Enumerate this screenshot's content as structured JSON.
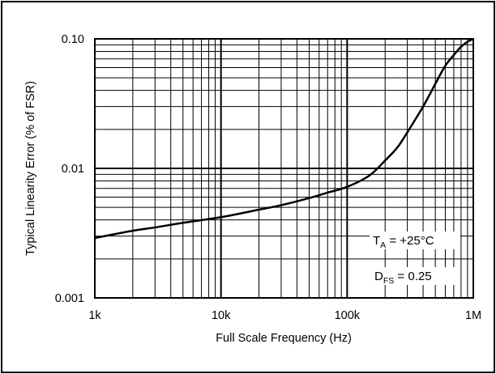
{
  "chart_data": {
    "type": "line",
    "x_scale": "log",
    "y_scale": "log",
    "xlim": [
      1000,
      1000000
    ],
    "ylim": [
      0.001,
      0.1
    ],
    "xlabel": "Full Scale Frequency (Hz)",
    "ylabel": "Typical Linearity Error (% of FSR)",
    "x_ticks": [
      {
        "value": 1000,
        "label": "1k"
      },
      {
        "value": 10000,
        "label": "10k"
      },
      {
        "value": 100000,
        "label": "100k"
      },
      {
        "value": 1000000,
        "label": "1M"
      }
    ],
    "y_ticks": [
      {
        "value": 0.001,
        "label": "0.001"
      },
      {
        "value": 0.01,
        "label": "0.01"
      },
      {
        "value": 0.1,
        "label": "0.10"
      }
    ],
    "grid": true,
    "series": [
      {
        "x": [
          1000,
          2000,
          3000,
          5000,
          10000,
          20000,
          30000,
          50000,
          70000,
          100000,
          150000,
          200000,
          250000,
          300000,
          400000,
          500000,
          600000,
          700000,
          800000,
          900000,
          1000000
        ],
        "y": [
          0.0029,
          0.0033,
          0.0035,
          0.0038,
          0.0042,
          0.0048,
          0.0052,
          0.0059,
          0.0065,
          0.0072,
          0.0088,
          0.0115,
          0.0145,
          0.019,
          0.03,
          0.045,
          0.062,
          0.075,
          0.087,
          0.095,
          0.1
        ],
        "color": "#000000"
      }
    ],
    "annotations": [
      {
        "base": "T",
        "sub": "A",
        "rest": " = +25°C"
      },
      {
        "base": "D",
        "sub": "FS",
        "rest": " = 0.25"
      }
    ]
  }
}
